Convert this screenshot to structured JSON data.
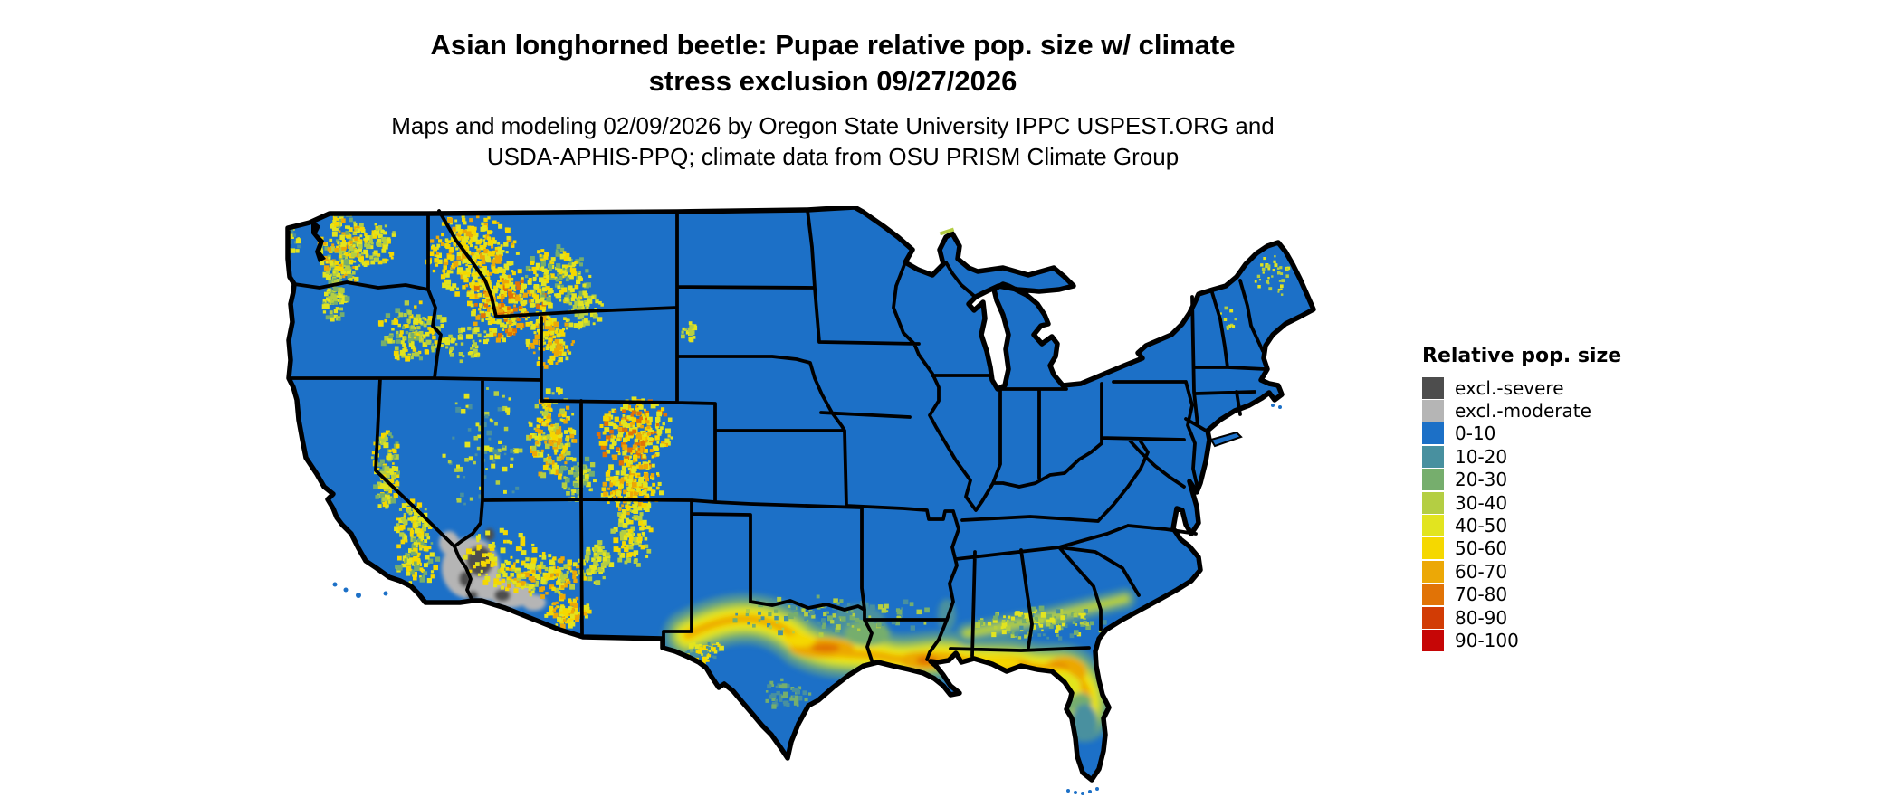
{
  "title": {
    "line1": "Asian longhorned beetle: Pupae relative pop. size w/ climate",
    "line2": "stress exclusion 09/27/2026"
  },
  "subtitle": {
    "line1": "Maps and modeling 02/09/2026 by Oregon State University IPPC USPEST.ORG and",
    "line2": "USDA-APHIS-PPQ; climate data from OSU PRISM Climate Group"
  },
  "legend": {
    "title": "Relative pop. size",
    "items": [
      {
        "key": "excl-severe",
        "label": "excl.-severe",
        "color": "#4D4D4D"
      },
      {
        "key": "excl-moderate",
        "label": "excl.-moderate",
        "color": "#B5B5B5"
      },
      {
        "key": "0-10",
        "label": "0-10",
        "color": "#1C70C7"
      },
      {
        "key": "10-20",
        "label": "10-20",
        "color": "#48909F"
      },
      {
        "key": "20-30",
        "label": "20-30",
        "color": "#76AE6D"
      },
      {
        "key": "30-40",
        "label": "30-40",
        "color": "#B4CE43"
      },
      {
        "key": "40-50",
        "label": "40-50",
        "color": "#E2E41F"
      },
      {
        "key": "50-60",
        "label": "50-60",
        "color": "#F5D800"
      },
      {
        "key": "60-70",
        "label": "60-70",
        "color": "#ECA806"
      },
      {
        "key": "70-80",
        "label": "70-80",
        "color": "#E17306"
      },
      {
        "key": "80-90",
        "label": "80-90",
        "color": "#D23C05"
      },
      {
        "key": "90-100",
        "label": "90-100",
        "color": "#C60606"
      }
    ]
  },
  "map": {
    "background": "#FFFFFF",
    "border_color": "#000000",
    "land_base_class": "0-10",
    "regions": [
      {
        "name": "Eastern and central US, plains, upper Midwest, Northeast",
        "classes": "0-10 (blue)"
      },
      {
        "name": "Cascades, Northern Rockies (ID/MT/WY), Wasatch, Sierra Nevada, Colorado Rockies",
        "classes": "30-80 speckled (yellow/orange)"
      },
      {
        "name": "Desert Southwest along CA/AZ border",
        "classes": "excl.-moderate and excl.-severe (gray)"
      },
      {
        "name": "Gulf Coast band across central TX, LA, MS, AL, S GA into N Florida",
        "classes": "10-80 gradient (teal to orange)"
      },
      {
        "name": "Peninsular Florida interior",
        "classes": "10-40"
      },
      {
        "name": "South Florida and Keys",
        "classes": "0-10"
      }
    ]
  }
}
